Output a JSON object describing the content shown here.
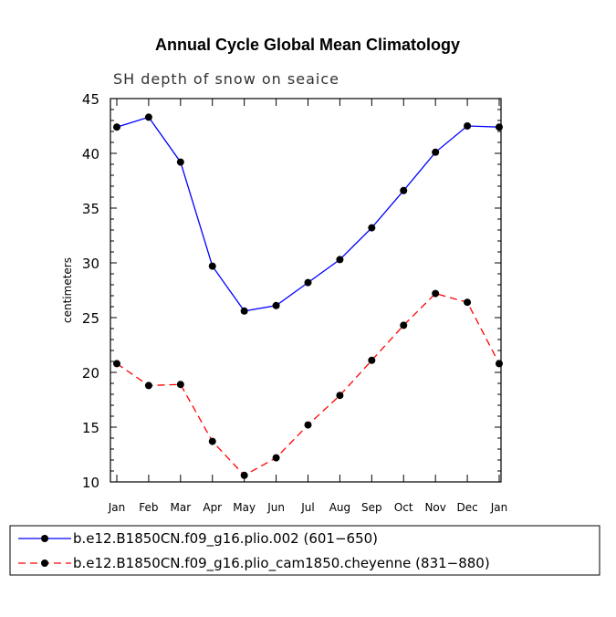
{
  "chart_data": {
    "type": "line",
    "title": "Annual Cycle Global Mean Climatology",
    "subtitle": "SH depth of snow on seaice",
    "xlabel": "",
    "ylabel": "centimeters",
    "categories": [
      "Jan",
      "Feb",
      "Mar",
      "Apr",
      "May",
      "Jun",
      "Jul",
      "Aug",
      "Sep",
      "Oct",
      "Nov",
      "Dec",
      "Jan"
    ],
    "ylim": [
      10,
      45
    ],
    "yticks": [
      "10",
      "15",
      "20",
      "25",
      "30",
      "35",
      "40",
      "45"
    ],
    "series": [
      {
        "name": "b.e12.B1850CN.f09_g16.plio.002 (601−650)",
        "color": "#0000ff",
        "style": "solid",
        "values": [
          42.4,
          43.3,
          39.2,
          29.7,
          25.6,
          26.1,
          28.2,
          30.3,
          33.2,
          36.6,
          40.1,
          42.5,
          42.4
        ]
      },
      {
        "name": "b.e12.B1850CN.f09_g16.plio_cam1850.cheyenne (831−880)",
        "color": "#ff0000",
        "style": "dashed",
        "values": [
          20.8,
          18.8,
          18.9,
          13.7,
          10.6,
          12.2,
          15.2,
          17.9,
          21.1,
          24.3,
          27.2,
          26.4,
          20.8
        ]
      }
    ],
    "legend_position": "bottom"
  }
}
